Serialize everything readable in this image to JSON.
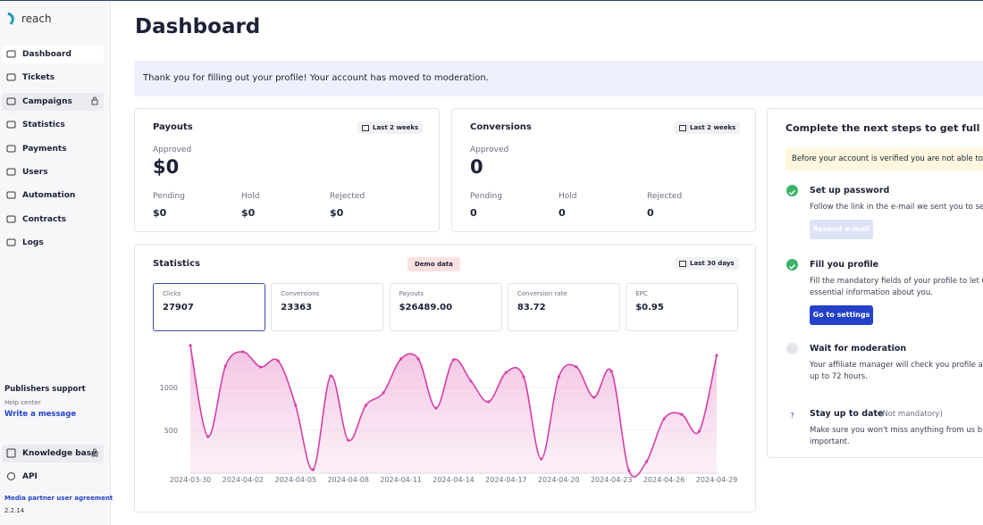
{
  "sidebar": {
    "brand": "reach",
    "nav": [
      "Dashboard",
      "Tickets",
      "Campaigns",
      "Statistics",
      "Payments",
      "Users",
      "Automation",
      "Contracts",
      "Logs"
    ],
    "support_title": "Publishers support",
    "help_center": "Help center",
    "write_message": "Write a message",
    "knowledge_base": "Knowledge base",
    "api": "API",
    "agreement": "Media partner user agreement",
    "version": "2.2.14"
  },
  "header": {
    "title": "Dashboard"
  },
  "banner": "Thank you for filling out your profile! Your account has moved to moderation.",
  "payouts": {
    "title": "Payouts",
    "period": "Last 2 weeks",
    "approved_label": "Approved",
    "approved": "$0",
    "pending_label": "Pending",
    "pending": "$0",
    "hold_label": "Hold",
    "hold": "$0",
    "rejected_label": "Rejected",
    "rejected": "$0"
  },
  "conversions": {
    "title": "Conversions",
    "period": "Last 2 weeks",
    "approved_label": "Approved",
    "approved": 0,
    "pending_label": "Pending",
    "pending": 0,
    "hold_label": "Hold",
    "hold": 0,
    "rejected_label": "Rejected",
    "rejected": 0
  },
  "statistics": {
    "title": "Statistics",
    "badge": "Demo data",
    "period": "Last 30 days",
    "metrics": [
      {
        "label": "Clicks",
        "value": 27907
      },
      {
        "label": "Conversions",
        "value": 23363
      },
      {
        "label": "Payouts",
        "value": "$26489.00"
      },
      {
        "label": "Conversion rate",
        "value": 83.72
      },
      {
        "label": "EPC",
        "value": "$0.95"
      }
    ]
  },
  "chart_data": {
    "type": "line",
    "categories": [
      "2024-03-30",
      null,
      null,
      "2024-04-02",
      null,
      null,
      "2024-04-05",
      null,
      null,
      "2024-04-08",
      null,
      null,
      "2024-04-11",
      null,
      null,
      "2024-04-14",
      null,
      null,
      "2024-04-17",
      null,
      null,
      "2024-04-20",
      null,
      null,
      "2024-04-23",
      null,
      null,
      "2024-04-26",
      null,
      null,
      "2024-04-29"
    ],
    "values": [
      1490,
      427,
      1250,
      1417,
      1240,
      1312,
      792,
      42,
      1135,
      385,
      792,
      938,
      1333,
      1333,
      760,
      1323,
      1073,
      833,
      1177,
      1125,
      167,
      1125,
      1240,
      885,
      1188,
      31,
      135,
      635,
      688,
      490,
      1375
    ],
    "color": "#d63fa8",
    "ylim": [
      0,
      1500
    ],
    "yticks": [
      500,
      1000
    ],
    "grid": true
  },
  "steps": {
    "title": "Complete the next steps to get full acc",
    "notice": "Before your account is verified you are not able to ap",
    "items": [
      {
        "title": "Set up password",
        "lines": [
          "Follow the link in the e-mail we sent you to set up"
        ],
        "button": "Resend e-mail"
      },
      {
        "title": "Fill you profile",
        "lines": [
          "Fill the mandatory fields of your profile to let us c",
          "essential information about you."
        ],
        "button": "Go to settings"
      },
      {
        "title": "Wait for moderation",
        "lines": [
          "Your affiliate manager will check you profile and",
          "up to 72 hours."
        ]
      },
      {
        "title": "Stay up to date",
        "note": "(Not mandatory)",
        "lines": [
          "Make sure you won't miss anything from us by m",
          "important."
        ]
      }
    ]
  }
}
